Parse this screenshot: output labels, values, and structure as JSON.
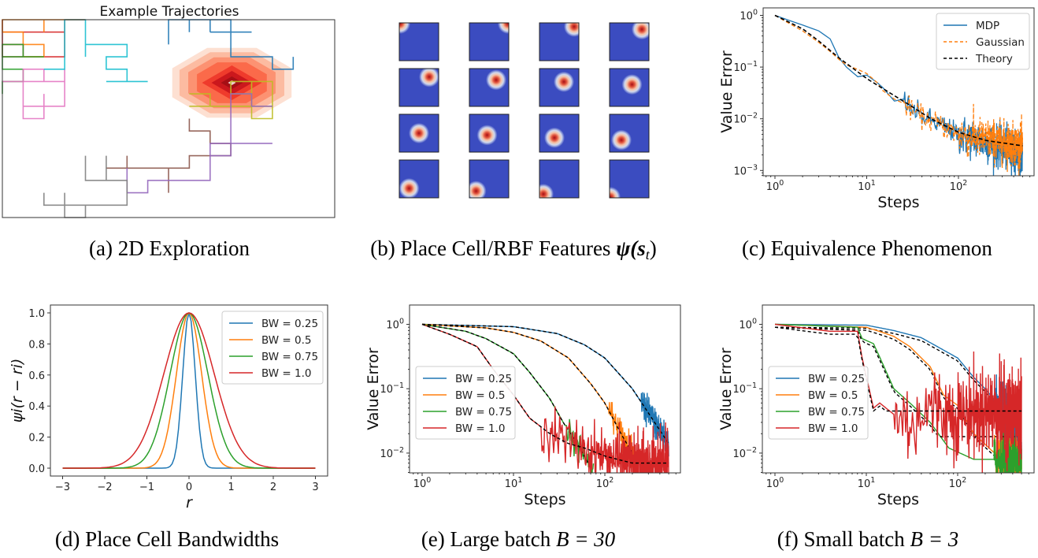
{
  "figure": {
    "captions": {
      "a": "(a)  2D Exploration",
      "b_prefix": "(b)  Place Cell/RBF Features ",
      "b_math": "ψ(s",
      "b_sub": "t",
      "b_close": ")",
      "c": "(c)  Equivalence Phenomenon",
      "d": "(d)  Place Cell Bandwidths",
      "e_prefix": "(e)  Large batch ",
      "e_math": "B = 30",
      "f_prefix": "(f)  Small batch ",
      "f_math": "B = 3"
    }
  },
  "chart_data": [
    {
      "id": "a",
      "type": "heatmap",
      "title": "Example Trajectories",
      "description": "Random-walk trajectories on a 16x16 grid, each colored differently, over a red Gaussian reward/value contour",
      "grid": {
        "cols": 16,
        "rows": 16
      },
      "trajectory_colors": [
        "#d62728",
        "#ff7f0e",
        "#2ca02c",
        "#e377c2",
        "#17becf",
        "#8c564b",
        "#bcbd22",
        "#9467bd",
        "#1f77b4",
        "#7f7f7f"
      ],
      "heat_center_cell": [
        11,
        5
      ],
      "heat_colors": [
        "#fde0d2",
        "#fcbba1",
        "#fc9272",
        "#fb6a4a",
        "#ef3b2c",
        "#cb181d",
        "#a50f15"
      ]
    },
    {
      "id": "b",
      "type": "heatmap",
      "layout": {
        "rows": 4,
        "cols": 4
      },
      "description": "RBF place-cell activation maps; bump moves from top-left to top-right, through center, to bottom-left",
      "background_color": "#3b4cc0",
      "peak_color": "#b40426",
      "centers": [
        [
          0.02,
          0.02
        ],
        [
          0.98,
          0.02
        ],
        [
          0.88,
          0.1
        ],
        [
          0.82,
          0.17
        ],
        [
          0.76,
          0.22
        ],
        [
          0.68,
          0.3
        ],
        [
          0.62,
          0.35
        ],
        [
          0.57,
          0.42
        ],
        [
          0.5,
          0.5
        ],
        [
          0.45,
          0.55
        ],
        [
          0.38,
          0.62
        ],
        [
          0.3,
          0.68
        ],
        [
          0.25,
          0.75
        ],
        [
          0.17,
          0.82
        ],
        [
          0.1,
          0.9
        ],
        [
          0.02,
          0.98
        ]
      ]
    },
    {
      "id": "c",
      "type": "line",
      "xscale": "log",
      "yscale": "log",
      "xlabel": "Steps",
      "ylabel": "Value Error",
      "xlim": [
        0.8,
        600
      ],
      "ylim": [
        0.0008,
        1.5
      ],
      "xticks": [
        "10^0",
        "10^1",
        "10^2"
      ],
      "yticks": [
        "10^0",
        "10^-1",
        "10^-2",
        "10^-3"
      ],
      "legend": {
        "placement": "top-right",
        "entries": [
          "MDP",
          "Gaussian",
          "Theory"
        ]
      },
      "series": [
        {
          "name": "MDP",
          "color": "#1f77b4",
          "style": "solid",
          "x": [
            1,
            2,
            3,
            4,
            5,
            6,
            8,
            10,
            13,
            15,
            20,
            25,
            30,
            40,
            60,
            100,
            200,
            500
          ],
          "y": [
            1.0,
            0.65,
            0.5,
            0.35,
            0.15,
            0.1,
            0.065,
            0.07,
            0.05,
            0.04,
            0.022,
            0.024,
            0.016,
            0.011,
            0.008,
            0.005,
            0.0035,
            0.002
          ]
        },
        {
          "name": "Gaussian",
          "color": "#ff7f0e",
          "style": "dashed",
          "x": [
            1,
            2,
            3,
            4,
            5,
            6,
            8,
            10,
            13,
            15,
            20,
            25,
            30,
            40,
            60,
            100,
            200,
            500
          ],
          "y": [
            1.0,
            0.5,
            0.3,
            0.2,
            0.14,
            0.11,
            0.09,
            0.075,
            0.05,
            0.035,
            0.024,
            0.02,
            0.015,
            0.011,
            0.008,
            0.005,
            0.004,
            0.003
          ]
        },
        {
          "name": "Theory",
          "color": "#000000",
          "style": "dashed",
          "x": [
            1,
            2,
            3,
            5,
            10,
            20,
            30,
            50,
            100,
            200,
            500
          ],
          "y": [
            1.0,
            0.55,
            0.32,
            0.15,
            0.06,
            0.028,
            0.018,
            0.01,
            0.0055,
            0.0038,
            0.003
          ]
        }
      ]
    },
    {
      "id": "d",
      "type": "line",
      "xlabel": "r",
      "ylabel": "ψi(r − ri)",
      "xlim": [
        -3.3,
        3.3
      ],
      "ylim": [
        -0.045,
        1.045
      ],
      "xticks": [
        "−3",
        "−2",
        "−1",
        "0",
        "1",
        "2",
        "3"
      ],
      "yticks": [
        "0.0",
        "0.2",
        "0.4",
        "0.6",
        "0.8",
        "1.0"
      ],
      "legend": {
        "placement": "top-right",
        "entries": [
          "BW = 0.25",
          "BW = 0.5",
          "BW = 0.75",
          "BW = 1.0"
        ]
      },
      "series": [
        {
          "name": "BW = 0.25",
          "color": "#1f77b4",
          "bandwidth": 0.25,
          "peak": 1.0,
          "value_at_r_1": 0.0
        },
        {
          "name": "BW = 0.5",
          "color": "#ff7f0e",
          "bandwidth": 0.5,
          "peak": 1.0,
          "value_at_r_1": 0.14
        },
        {
          "name": "BW = 0.75",
          "color": "#2ca02c",
          "bandwidth": 0.75,
          "peak": 1.0,
          "value_at_r_1": 0.41
        },
        {
          "name": "BW = 1.0",
          "color": "#d62728",
          "bandwidth": 1.0,
          "peak": 1.0,
          "value_at_r_1": 0.6
        }
      ]
    },
    {
      "id": "e",
      "type": "line",
      "xscale": "log",
      "yscale": "log",
      "xlabel": "Steps",
      "ylabel": "Value Error",
      "xlim": [
        0.8,
        600
      ],
      "ylim": [
        0.005,
        2.0
      ],
      "xticks": [
        "10^0",
        "10^1",
        "10^2"
      ],
      "yticks": [
        "10^0",
        "10^-1",
        "10^-2"
      ],
      "legend": {
        "placement": "lower-left",
        "entries": [
          "BW = 0.25",
          "BW = 0.5",
          "BW = 0.75",
          "BW = 1.0"
        ]
      },
      "series": [
        {
          "name": "BW = 0.25",
          "color": "#1f77b4",
          "x": [
            1,
            10,
            30,
            60,
            100,
            200,
            500
          ],
          "y": [
            1.0,
            0.92,
            0.72,
            0.48,
            0.3,
            0.1,
            0.014
          ]
        },
        {
          "name": "BW = 0.5",
          "color": "#ff7f0e",
          "x": [
            1,
            5,
            10,
            20,
            40,
            70,
            100,
            150,
            220
          ],
          "y": [
            1.0,
            0.88,
            0.75,
            0.55,
            0.3,
            0.12,
            0.06,
            0.02,
            0.008
          ]
        },
        {
          "name": "BW = 0.75",
          "color": "#2ca02c",
          "x": [
            1,
            3,
            5,
            10,
            15,
            25,
            35,
            50,
            75
          ],
          "y": [
            1.0,
            0.78,
            0.6,
            0.35,
            0.18,
            0.07,
            0.03,
            0.014,
            0.005
          ]
        },
        {
          "name": "BW = 1.0",
          "color": "#d62728",
          "x": [
            1,
            2,
            4,
            6,
            10,
            15,
            25,
            40,
            60,
            100,
            200,
            500
          ],
          "y": [
            1.0,
            0.7,
            0.45,
            0.2,
            0.08,
            0.035,
            0.02,
            0.014,
            0.012,
            0.009,
            0.007,
            0.007
          ]
        }
      ],
      "theory_color": "#000000"
    },
    {
      "id": "f",
      "type": "line",
      "xscale": "log",
      "yscale": "log",
      "xlabel": "Steps",
      "ylabel": "Value Error",
      "xlim": [
        0.8,
        600
      ],
      "ylim": [
        0.005,
        2.0
      ],
      "xticks": [
        "10^0",
        "10^1",
        "10^2"
      ],
      "yticks": [
        "10^0",
        "10^-1",
        "10^-2"
      ],
      "legend": {
        "placement": "lower-left",
        "entries": [
          "BW = 0.25",
          "BW = 0.5",
          "BW = 0.75",
          "BW = 1.0"
        ]
      },
      "series": [
        {
          "name": "BW = 0.25",
          "color": "#1f77b4",
          "x": [
            1,
            10,
            20,
            40,
            60,
            100,
            150,
            200,
            300,
            500
          ],
          "y": [
            1.0,
            0.97,
            0.8,
            0.62,
            0.45,
            0.3,
            0.15,
            0.1,
            0.05,
            0.012
          ]
        },
        {
          "name": "BW = 0.5",
          "color": "#ff7f0e",
          "x": [
            1,
            10,
            15,
            20,
            30,
            50,
            70,
            100,
            150,
            300,
            500
          ],
          "y": [
            1.0,
            0.9,
            0.75,
            0.65,
            0.45,
            0.22,
            0.08,
            0.055,
            0.02,
            0.008,
            0.007
          ]
        },
        {
          "name": "BW = 0.75",
          "color": "#2ca02c",
          "x": [
            1,
            8,
            9,
            12,
            15,
            20,
            30,
            50,
            80,
            150,
            300,
            500
          ],
          "y": [
            1.0,
            0.9,
            0.6,
            0.5,
            0.25,
            0.1,
            0.06,
            0.03,
            0.012,
            0.008,
            0.008,
            0.008
          ]
        },
        {
          "name": "BW = 1.0",
          "color": "#d62728",
          "x": [
            1,
            4,
            8,
            9,
            12,
            14,
            20,
            30,
            50,
            100,
            200,
            500
          ],
          "y": [
            1.0,
            0.78,
            0.78,
            0.3,
            0.05,
            0.06,
            0.04,
            0.03,
            0.05,
            0.04,
            0.045,
            0.04
          ]
        }
      ],
      "theory_plateaus": [
        0.0055,
        0.018,
        0.045
      ],
      "theory_color": "#000000"
    }
  ]
}
